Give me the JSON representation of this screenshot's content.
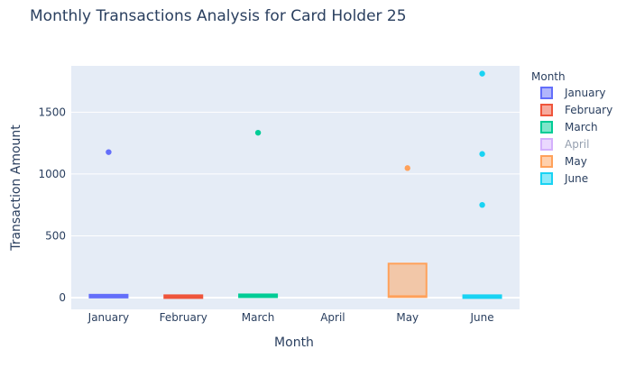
{
  "chart_data": {
    "type": "box",
    "title": "Monthly Transactions Analysis for Card Holder 25",
    "xlabel": "Month",
    "ylabel": "Transaction Amount",
    "ylim": [
      -95,
      1875
    ],
    "yticks": [
      0,
      500,
      1000,
      1500
    ],
    "legend": {
      "title": "Month",
      "placement": "right"
    },
    "grid": true,
    "background": "#e5ecf6",
    "series": [
      {
        "name": "January",
        "color": "#636efa",
        "hidden": false,
        "box": {
          "q1": 5,
          "median": 12,
          "q3": 22
        },
        "outliers": [
          1177
        ]
      },
      {
        "name": "February",
        "color": "#ef553b",
        "hidden": false,
        "box": {
          "q1": 3,
          "median": 8,
          "q3": 15
        },
        "outliers": []
      },
      {
        "name": "March",
        "color": "#00cc96",
        "hidden": false,
        "box": {
          "q1": 6,
          "median": 15,
          "q3": 24
        },
        "outliers": [
          1334
        ]
      },
      {
        "name": "April",
        "color": "#ab63fa",
        "hidden": true,
        "box": null,
        "outliers": []
      },
      {
        "name": "May",
        "color": "#ffa15a",
        "hidden": false,
        "box": {
          "q1": 5,
          "median": 12,
          "q3": 275
        },
        "outliers": [
          1048
        ]
      },
      {
        "name": "June",
        "color": "#19d3f3",
        "hidden": false,
        "box": {
          "q1": 0,
          "median": 8,
          "q3": 18
        },
        "outliers": [
          750,
          1162,
          1812
        ]
      }
    ]
  }
}
